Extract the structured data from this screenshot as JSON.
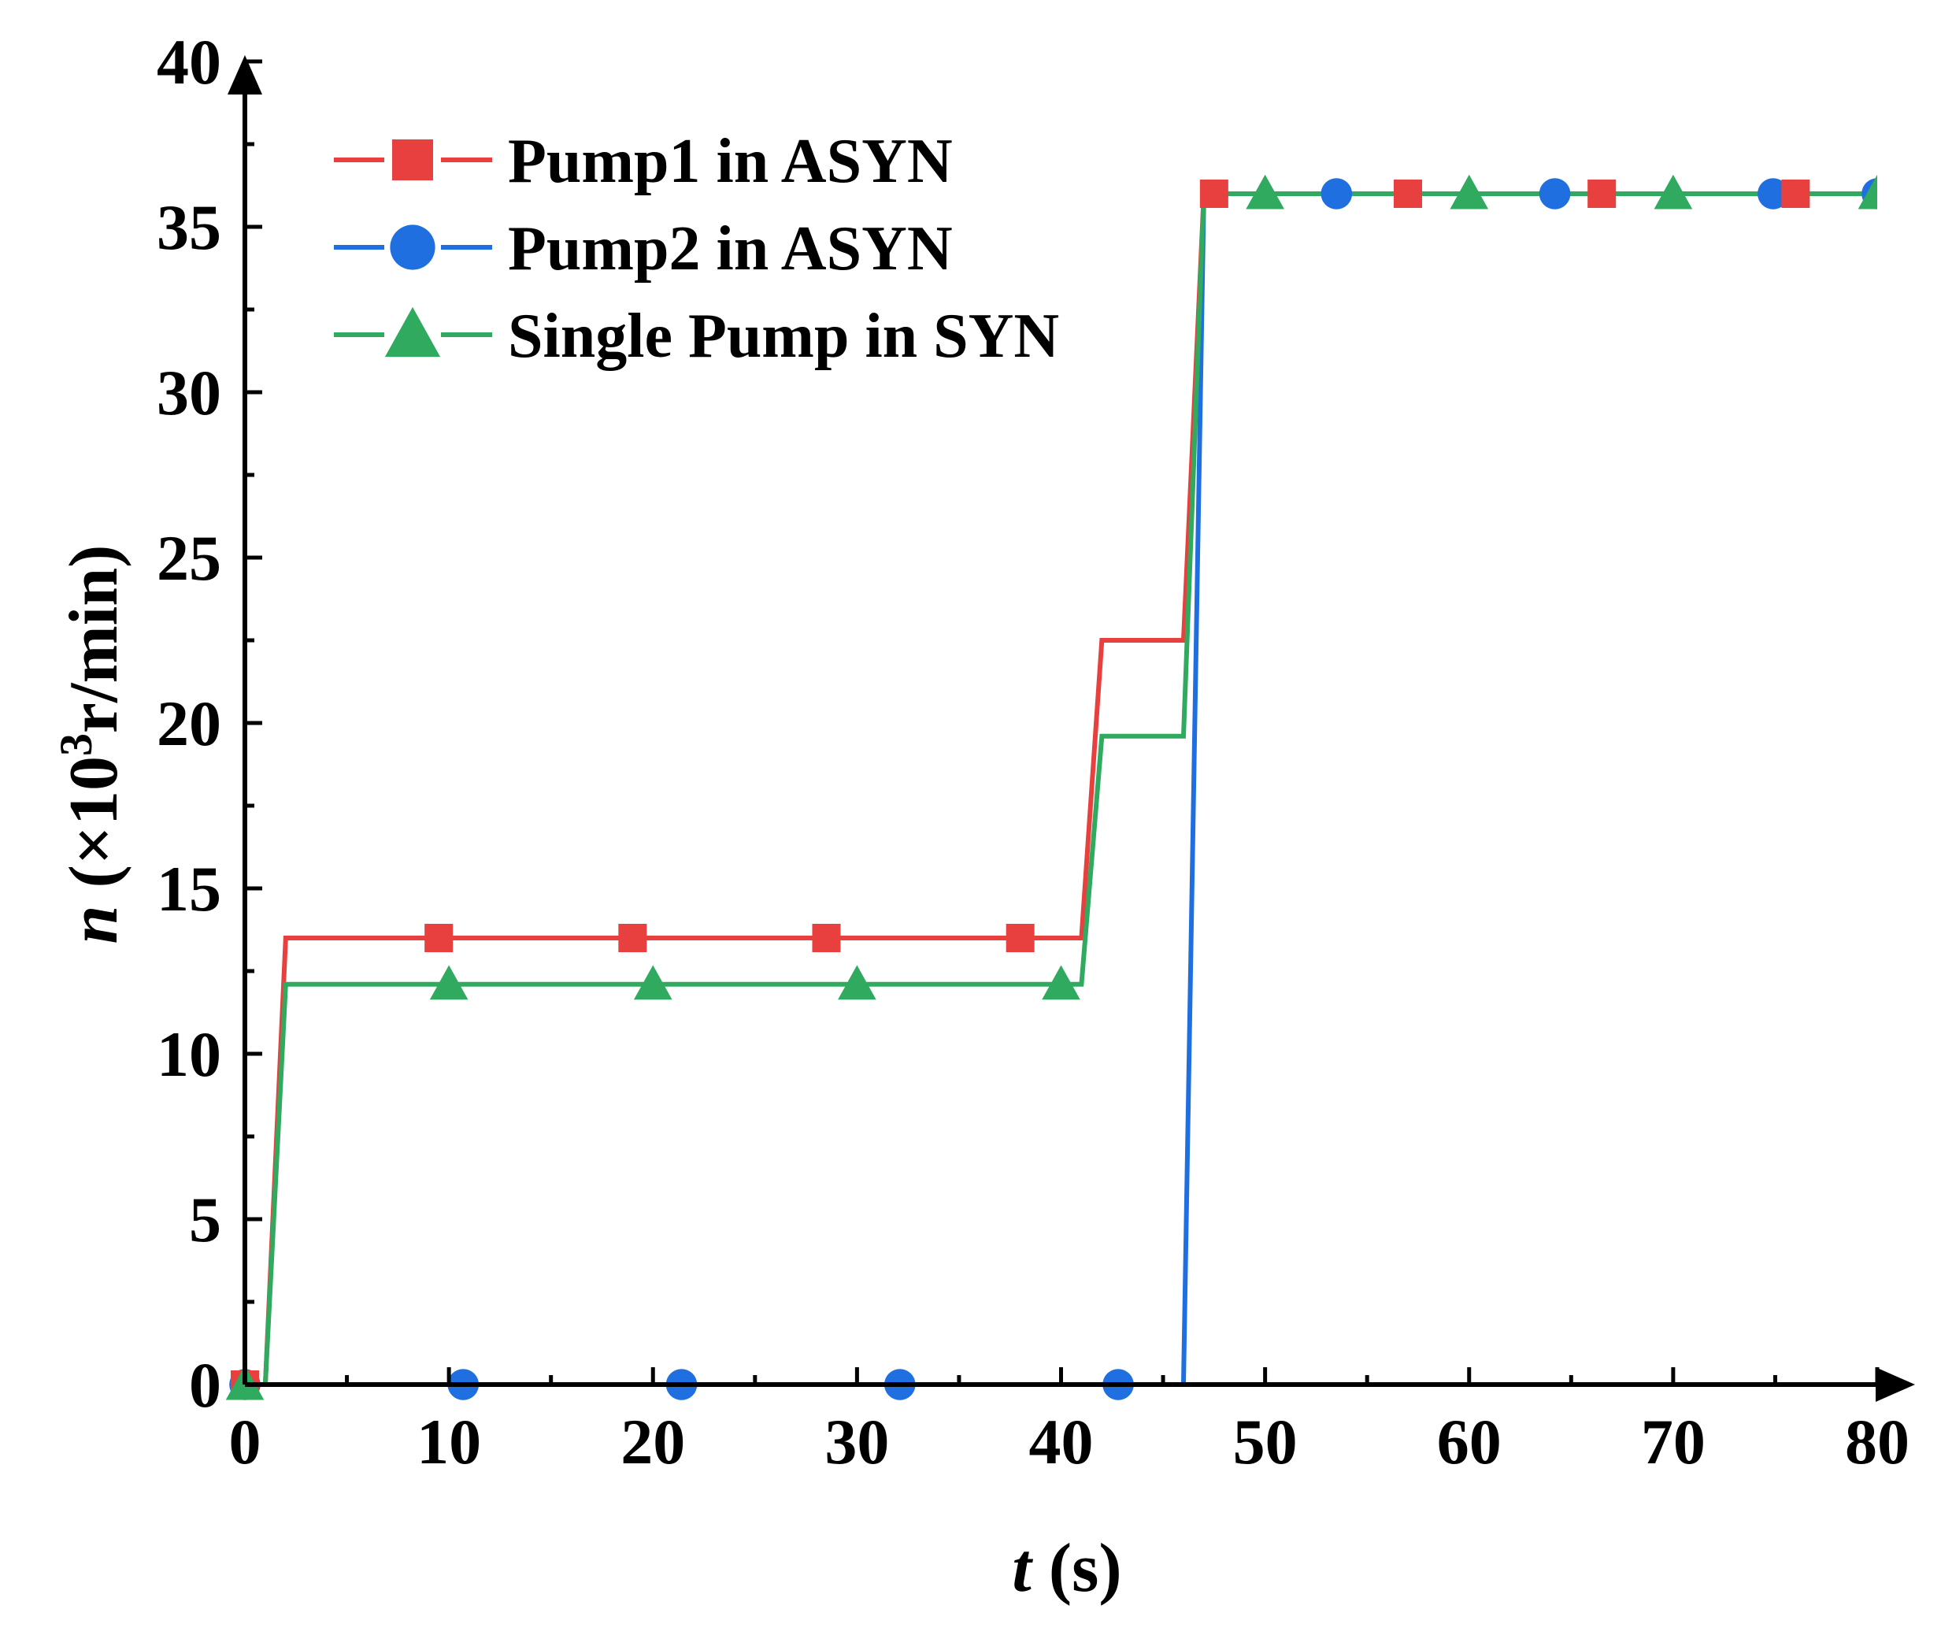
{
  "chart_data": {
    "type": "line",
    "xlabel": {
      "var": "t",
      "unit": " (s)"
    },
    "ylabel": {
      "var": "n",
      "unit_pre": " (×10",
      "unit_sup": "3",
      "unit_post": "r/min)"
    },
    "xlim": [
      0,
      80
    ],
    "ylim": [
      0,
      40
    ],
    "xticks": [
      0,
      10,
      20,
      30,
      40,
      50,
      60,
      70,
      80
    ],
    "yticks": [
      0,
      5,
      10,
      15,
      20,
      25,
      30,
      35,
      40
    ],
    "grid": false,
    "legend_position": "top-left",
    "series": [
      {
        "name": "Pump1 in ASYN",
        "color": "#e8403e",
        "marker": "square",
        "x": [
          0,
          1,
          2,
          41,
          42,
          46,
          47,
          80
        ],
        "y": [
          0,
          0,
          13.5,
          13.5,
          22.5,
          22.5,
          36,
          36
        ],
        "markers_x": [
          0,
          9.5,
          19,
          28.5,
          38,
          47.5,
          57,
          66.5,
          76
        ],
        "markers_y": [
          0,
          13.5,
          13.5,
          13.5,
          13.5,
          36,
          36,
          36,
          36
        ]
      },
      {
        "name": "Pump2 in ASYN",
        "color": "#1f6fe0",
        "marker": "circle",
        "x": [
          0,
          46,
          47,
          80
        ],
        "y": [
          0,
          0,
          36,
          36
        ],
        "markers_x": [
          0,
          10.7,
          21.4,
          32.1,
          42.8,
          53.5,
          64.2,
          74.9,
          80
        ],
        "markers_y": [
          0,
          0,
          0,
          0,
          0,
          36,
          36,
          36,
          36
        ]
      },
      {
        "name": "Single Pump in SYN",
        "color": "#2faa5f",
        "marker": "triangle",
        "x": [
          0,
          1,
          2,
          41,
          42,
          46,
          47,
          80
        ],
        "y": [
          0,
          0,
          12.1,
          12.1,
          19.6,
          19.6,
          36,
          36
        ],
        "markers_x": [
          0,
          10,
          20,
          30,
          40,
          50,
          60,
          70,
          80
        ],
        "markers_y": [
          0,
          12.1,
          12.1,
          12.1,
          12.1,
          36,
          36,
          36,
          36
        ]
      }
    ]
  }
}
